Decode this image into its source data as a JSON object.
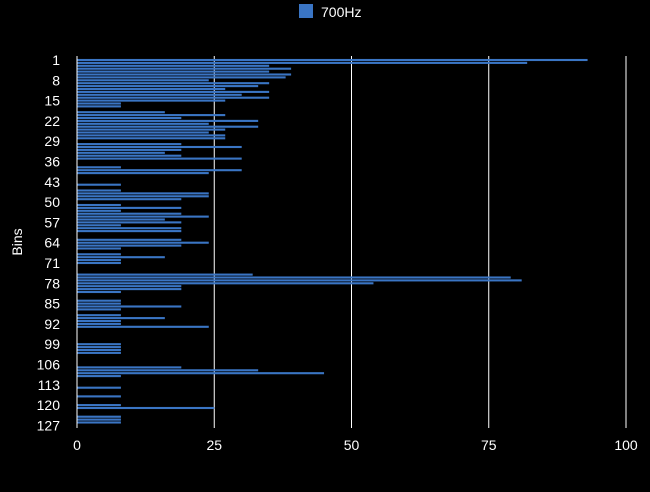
{
  "chart_data": {
    "type": "bar",
    "orientation": "horizontal",
    "title": "",
    "xlabel": "",
    "ylabel": "Bins",
    "xlim": [
      0,
      100
    ],
    "x_ticks": [
      "0",
      "25",
      "50",
      "75",
      "100"
    ],
    "y_tick_labels": [
      "1",
      "8",
      "15",
      "22",
      "29",
      "36",
      "43",
      "50",
      "57",
      "64",
      "71",
      "78",
      "85",
      "92",
      "99",
      "106",
      "113",
      "120",
      "127"
    ],
    "grid": "vertical",
    "legend_position": "top",
    "series": [
      {
        "name": "700Hz",
        "color": "#3a75c4",
        "values": [
          93,
          82,
          35,
          39,
          35,
          39,
          38,
          24,
          35,
          33,
          27,
          35,
          30,
          35,
          27,
          8,
          8,
          0,
          16,
          27,
          19,
          33,
          24,
          33,
          27,
          24,
          27,
          27,
          0,
          19,
          30,
          19,
          16,
          19,
          30,
          0,
          0,
          8,
          30,
          24,
          0,
          0,
          0,
          8,
          0,
          8,
          24,
          24,
          19,
          0,
          8,
          19,
          8,
          19,
          24,
          16,
          19,
          8,
          19,
          19,
          0,
          0,
          19,
          24,
          19,
          8,
          0,
          8,
          16,
          8,
          8,
          0,
          0,
          0,
          32,
          79,
          81,
          54,
          19,
          19,
          8,
          0,
          0,
          8,
          8,
          19,
          8,
          0,
          8,
          16,
          8,
          8,
          24,
          0,
          0,
          0,
          0,
          0,
          8,
          8,
          8,
          8,
          0,
          0,
          0,
          0,
          19,
          33,
          45,
          8,
          0,
          0,
          0,
          8,
          0,
          0,
          8,
          0,
          0,
          8,
          25,
          0,
          0,
          8,
          8,
          8,
          0,
          0
        ]
      }
    ]
  }
}
